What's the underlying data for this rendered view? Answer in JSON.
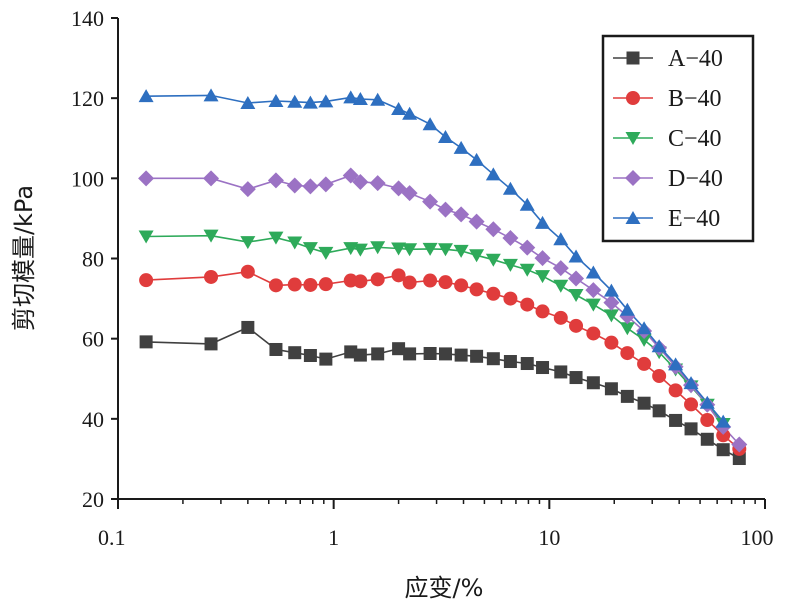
{
  "chart_data": {
    "type": "line",
    "x_scale": "log",
    "xlabel": "应变/%",
    "ylabel": "剪切模量/kPa",
    "xlim": [
      0.1,
      100
    ],
    "ylim": [
      20,
      140
    ],
    "x_ticks": [
      0.1,
      1,
      10,
      100
    ],
    "x_tick_labels": [
      "0.1",
      "1",
      "10",
      "100"
    ],
    "y_ticks": [
      20,
      40,
      60,
      80,
      100,
      120,
      140
    ],
    "y_tick_labels": [
      "20",
      "40",
      "60",
      "80",
      "100",
      "120",
      "140"
    ],
    "grid": false,
    "legend_position": "top-right",
    "series": [
      {
        "name": "A−40",
        "color": "#404040",
        "marker": "square",
        "x": [
          0.135,
          0.27,
          0.4,
          0.54,
          0.66,
          0.78,
          0.92,
          1.2,
          1.33,
          1.6,
          2.0,
          2.25,
          2.8,
          3.3,
          3.9,
          4.6,
          5.5,
          6.6,
          7.9,
          9.3,
          11.3,
          13.3,
          16.0,
          19.4,
          23.0,
          27.5,
          32.3,
          38.5,
          45.4,
          54.0,
          64.0,
          76.0
        ],
        "y": [
          59.2,
          58.7,
          62.8,
          57.3,
          56.5,
          55.8,
          54.9,
          56.7,
          55.9,
          56.2,
          57.5,
          56.2,
          56.3,
          56.2,
          55.9,
          55.6,
          55.0,
          54.3,
          53.8,
          52.8,
          51.7,
          50.3,
          49.0,
          47.5,
          45.6,
          43.9,
          42.0,
          39.6,
          37.5,
          34.9,
          32.3,
          30.1
        ]
      },
      {
        "name": "B−40",
        "color": "#e03c3c",
        "marker": "circle",
        "x": [
          0.135,
          0.27,
          0.4,
          0.54,
          0.66,
          0.78,
          0.92,
          1.2,
          1.33,
          1.6,
          2.0,
          2.25,
          2.8,
          3.3,
          3.9,
          4.6,
          5.5,
          6.6,
          7.9,
          9.3,
          11.3,
          13.3,
          16.0,
          19.4,
          23.0,
          27.5,
          32.3,
          38.5,
          45.4,
          54.0,
          64.0,
          76.0
        ],
        "y": [
          74.6,
          75.4,
          76.7,
          73.3,
          73.5,
          73.4,
          73.6,
          74.5,
          74.3,
          74.8,
          75.8,
          74.0,
          74.5,
          74.1,
          73.3,
          72.3,
          71.2,
          70.0,
          68.5,
          66.8,
          65.2,
          63.2,
          61.3,
          59.0,
          56.4,
          53.7,
          50.7,
          47.1,
          43.6,
          39.7,
          35.9,
          32.5
        ]
      },
      {
        "name": "C−40",
        "color": "#2eaa5a",
        "marker": "triangle-down",
        "x": [
          0.135,
          0.27,
          0.4,
          0.54,
          0.66,
          0.78,
          0.92,
          1.2,
          1.33,
          1.6,
          2.0,
          2.25,
          2.8,
          3.3,
          3.9,
          4.6,
          5.5,
          6.6,
          7.9,
          9.3,
          11.3,
          13.3,
          16.0,
          19.4,
          23.0,
          27.5,
          32.3,
          38.5,
          45.4,
          54.0,
          64.0
        ],
        "y": [
          85.5,
          85.7,
          84.1,
          85.2,
          84.0,
          82.6,
          81.4,
          82.6,
          82.2,
          82.8,
          82.5,
          82.3,
          82.4,
          82.3,
          81.9,
          80.8,
          79.7,
          78.4,
          77.2,
          75.6,
          73.2,
          70.9,
          68.5,
          65.8,
          62.6,
          59.7,
          56.6,
          52.3,
          48.1,
          43.5,
          38.7
        ]
      },
      {
        "name": "D−40",
        "color": "#9b72c4",
        "marker": "diamond",
        "x": [
          0.135,
          0.27,
          0.4,
          0.54,
          0.66,
          0.78,
          0.92,
          1.2,
          1.33,
          1.6,
          2.0,
          2.25,
          2.8,
          3.3,
          3.9,
          4.6,
          5.5,
          6.6,
          7.9,
          9.3,
          11.3,
          13.3,
          16.0,
          19.4,
          23.0,
          27.5,
          32.3,
          38.5,
          45.4,
          54.0,
          64.0,
          76.0
        ],
        "y": [
          100.0,
          100.0,
          97.3,
          99.5,
          98.2,
          98.0,
          98.5,
          100.7,
          99.1,
          98.8,
          97.5,
          96.3,
          94.2,
          92.2,
          91.0,
          89.2,
          87.3,
          85.1,
          82.7,
          80.1,
          77.6,
          75.0,
          72.1,
          69.0,
          65.6,
          61.9,
          57.7,
          53.0,
          48.4,
          43.5,
          38.0,
          33.6
        ]
      },
      {
        "name": "E−40",
        "color": "#2e6fc0",
        "marker": "triangle-up",
        "x": [
          0.135,
          0.27,
          0.4,
          0.54,
          0.66,
          0.78,
          0.92,
          1.2,
          1.33,
          1.6,
          2.0,
          2.25,
          2.8,
          3.3,
          3.9,
          4.6,
          5.5,
          6.6,
          7.9,
          9.3,
          11.3,
          13.3,
          16.0,
          19.4,
          23.0,
          27.5,
          32.3,
          38.5,
          45.4,
          54.0,
          64.0
        ],
        "y": [
          120.5,
          120.7,
          118.8,
          119.3,
          119.1,
          118.9,
          119.2,
          120.2,
          119.8,
          119.6,
          117.3,
          116.1,
          113.5,
          110.3,
          107.6,
          104.6,
          101.0,
          97.4,
          93.4,
          88.9,
          84.8,
          80.5,
          76.5,
          72.0,
          67.2,
          62.6,
          58.1,
          53.6,
          48.9,
          44.0,
          39.3
        ]
      }
    ]
  }
}
